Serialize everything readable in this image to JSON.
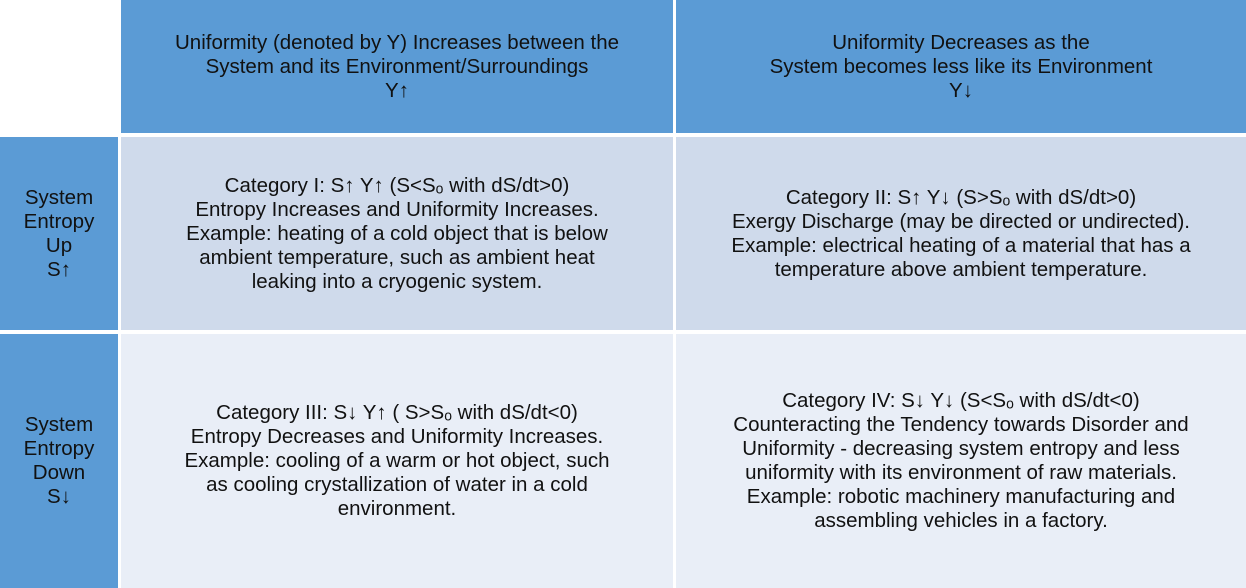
{
  "table": {
    "columns": [
      [
        "Uniformity (denoted by Y) Increases between the",
        "System and its Environment/Surroundings",
        "Y↑"
      ],
      [
        "Uniformity Decreases as the",
        "System becomes less like its Environment",
        "Y↓"
      ]
    ],
    "rows": [
      {
        "header": [
          "System",
          "Entropy",
          "Up",
          "S↑"
        ],
        "cells": [
          [
            "Category I: S↑ Y↑ (S<Sₒ with dS/dt>0)",
            "Entropy Increases and Uniformity Increases.",
            "Example: heating of a cold object that is below",
            "ambient temperature, such as ambient heat",
            "leaking into a cryogenic system."
          ],
          [
            "Category II: S↑ Y↓ (S>Sₒ with dS/dt>0)",
            "Exergy Discharge (may be directed or undirected).",
            "Example: electrical heating of a material that has a",
            "temperature above ambient temperature."
          ]
        ]
      },
      {
        "header": [
          "System",
          "Entropy",
          "Down",
          "S↓"
        ],
        "cells": [
          [
            "Category III: S↓ Y↑ ( S>Sₒ with dS/dt<0)",
            "Entropy Decreases and Uniformity Increases.",
            "Example: cooling of a warm or hot object, such",
            "as cooling crystallization of water in a cold",
            "environment."
          ],
          [
            "Category IV: S↓ Y↓ (S<Sₒ with dS/dt<0)",
            "Counteracting the Tendency towards Disorder and",
            "Uniformity - decreasing system entropy and less",
            "uniformity with its environment of raw materials.",
            "Example: robotic machinery manufacturing and",
            "assembling vehicles in a factory."
          ]
        ]
      }
    ]
  }
}
